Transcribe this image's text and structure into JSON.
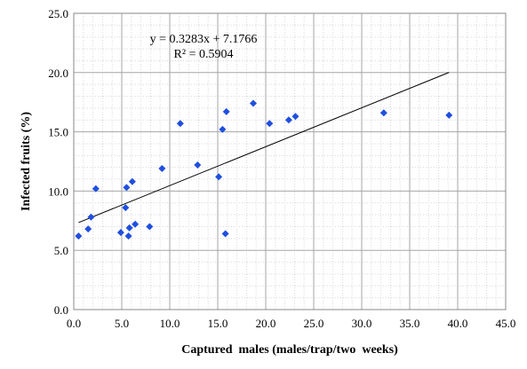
{
  "chart_data": {
    "type": "scatter",
    "xlabel": "Captured  males (males/trap/two  weeks)",
    "ylabel": "Infected fruits (%)",
    "xlim": [
      0,
      45
    ],
    "ylim": [
      0,
      25
    ],
    "xticks": [
      "0.0",
      "5.0",
      "10.0",
      "15.0",
      "20.0",
      "25.0",
      "30.0",
      "35.0",
      "40.0",
      "45.0"
    ],
    "yticks": [
      "0.0",
      "5.0",
      "10.0",
      "15.0",
      "20.0",
      "25.0"
    ],
    "grid": true,
    "minor_grid": true,
    "marker": "diamond",
    "marker_color": "#1f4fe0",
    "points": [
      {
        "x": 0.5,
        "y": 6.2
      },
      {
        "x": 1.5,
        "y": 6.8
      },
      {
        "x": 1.8,
        "y": 7.8
      },
      {
        "x": 2.3,
        "y": 10.2
      },
      {
        "x": 4.9,
        "y": 6.5
      },
      {
        "x": 5.4,
        "y": 8.6
      },
      {
        "x": 5.5,
        "y": 10.3
      },
      {
        "x": 5.7,
        "y": 6.2
      },
      {
        "x": 5.8,
        "y": 6.9
      },
      {
        "x": 6.1,
        "y": 10.8
      },
      {
        "x": 6.4,
        "y": 7.2
      },
      {
        "x": 7.9,
        "y": 7.0
      },
      {
        "x": 9.2,
        "y": 11.9
      },
      {
        "x": 11.1,
        "y": 15.7
      },
      {
        "x": 12.9,
        "y": 12.2
      },
      {
        "x": 15.1,
        "y": 11.2
      },
      {
        "x": 15.5,
        "y": 15.2
      },
      {
        "x": 15.8,
        "y": 6.4
      },
      {
        "x": 15.9,
        "y": 16.7
      },
      {
        "x": 18.7,
        "y": 17.4
      },
      {
        "x": 20.4,
        "y": 15.7
      },
      {
        "x": 22.4,
        "y": 16.0
      },
      {
        "x": 23.1,
        "y": 16.3
      },
      {
        "x": 32.3,
        "y": 16.6
      },
      {
        "x": 39.1,
        "y": 16.4
      }
    ],
    "trendline": {
      "slope": 0.3283,
      "intercept": 7.1766,
      "x_range": [
        0.5,
        39.1
      ],
      "equation": "y = 0.3283x + 7.1766",
      "r_squared": "R² = 0.5904"
    }
  }
}
